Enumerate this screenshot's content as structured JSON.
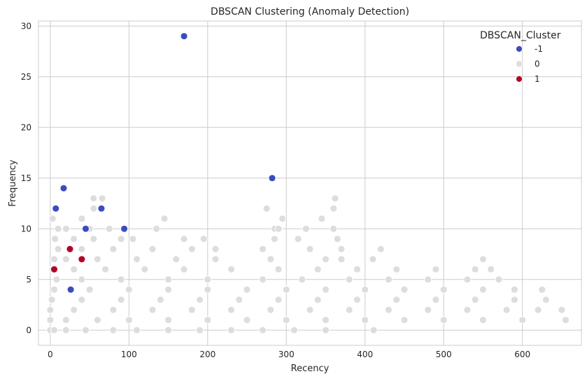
{
  "chart_data": {
    "type": "scatter",
    "title": "DBSCAN Clustering (Anomaly Detection)",
    "xlabel": "Recency",
    "ylabel": "Frequency",
    "xlim": [
      -15,
      675
    ],
    "ylim": [
      -1.5,
      30.5
    ],
    "xticks": [
      0,
      100,
      200,
      300,
      400,
      500,
      600
    ],
    "yticks": [
      0,
      5,
      10,
      15,
      20,
      25,
      30
    ],
    "grid": true,
    "legend": {
      "title": "DBSCAN_Cluster",
      "placement": "top-right",
      "entries": [
        {
          "label": "-1",
          "color": "#3b4cc0"
        },
        {
          "label": "0",
          "color": "#dddddd"
        },
        {
          "label": "1",
          "color": "#b40426"
        }
      ]
    },
    "series": [
      {
        "name": "-1",
        "color": "#3b4cc0",
        "points": [
          [
            170,
            29
          ],
          [
            282,
            15
          ],
          [
            17,
            14
          ],
          [
            7,
            12
          ],
          [
            65,
            12
          ],
          [
            45,
            10
          ],
          [
            94,
            10
          ],
          [
            26,
            4
          ]
        ]
      },
      {
        "name": "1",
        "color": "#b40426",
        "points": [
          [
            25,
            8
          ],
          [
            40,
            7
          ],
          [
            5,
            6
          ]
        ]
      },
      {
        "name": "0",
        "color": "#dddddd",
        "points": [
          [
            0,
            0
          ],
          [
            5,
            0
          ],
          [
            20,
            0
          ],
          [
            45,
            0
          ],
          [
            80,
            0
          ],
          [
            110,
            0
          ],
          [
            150,
            0
          ],
          [
            190,
            0
          ],
          [
            230,
            0
          ],
          [
            270,
            0
          ],
          [
            310,
            0
          ],
          [
            350,
            0
          ],
          [
            411,
            0
          ],
          [
            0,
            1
          ],
          [
            20,
            1
          ],
          [
            60,
            1
          ],
          [
            100,
            1
          ],
          [
            150,
            1
          ],
          [
            200,
            1
          ],
          [
            250,
            1
          ],
          [
            300,
            1
          ],
          [
            350,
            1
          ],
          [
            400,
            1
          ],
          [
            450,
            1
          ],
          [
            500,
            1
          ],
          [
            550,
            1
          ],
          [
            600,
            1
          ],
          [
            655,
            1
          ],
          [
            0,
            2
          ],
          [
            30,
            2
          ],
          [
            80,
            2
          ],
          [
            130,
            2
          ],
          [
            180,
            2
          ],
          [
            230,
            2
          ],
          [
            280,
            2
          ],
          [
            330,
            2
          ],
          [
            380,
            2
          ],
          [
            430,
            2
          ],
          [
            480,
            2
          ],
          [
            530,
            2
          ],
          [
            580,
            2
          ],
          [
            620,
            2
          ],
          [
            650,
            2
          ],
          [
            2,
            3
          ],
          [
            40,
            3
          ],
          [
            90,
            3
          ],
          [
            140,
            3
          ],
          [
            190,
            3
          ],
          [
            240,
            3
          ],
          [
            290,
            3
          ],
          [
            340,
            3
          ],
          [
            390,
            3
          ],
          [
            440,
            3
          ],
          [
            490,
            3
          ],
          [
            540,
            3
          ],
          [
            590,
            3
          ],
          [
            630,
            3
          ],
          [
            5,
            4
          ],
          [
            50,
            4
          ],
          [
            100,
            4
          ],
          [
            150,
            4
          ],
          [
            200,
            4
          ],
          [
            250,
            4
          ],
          [
            300,
            4
          ],
          [
            350,
            4
          ],
          [
            400,
            4
          ],
          [
            450,
            4
          ],
          [
            500,
            4
          ],
          [
            550,
            4
          ],
          [
            590,
            4
          ],
          [
            625,
            4
          ],
          [
            8,
            5
          ],
          [
            40,
            5
          ],
          [
            90,
            5
          ],
          [
            150,
            5
          ],
          [
            200,
            5
          ],
          [
            270,
            5
          ],
          [
            320,
            5
          ],
          [
            380,
            5
          ],
          [
            430,
            5
          ],
          [
            480,
            5
          ],
          [
            530,
            5
          ],
          [
            570,
            5
          ],
          [
            3,
            6
          ],
          [
            30,
            6
          ],
          [
            70,
            6
          ],
          [
            120,
            6
          ],
          [
            170,
            6
          ],
          [
            230,
            6
          ],
          [
            290,
            6
          ],
          [
            340,
            6
          ],
          [
            390,
            6
          ],
          [
            440,
            6
          ],
          [
            490,
            6
          ],
          [
            540,
            6
          ],
          [
            560,
            6
          ],
          [
            5,
            7
          ],
          [
            20,
            7
          ],
          [
            60,
            7
          ],
          [
            110,
            7
          ],
          [
            160,
            7
          ],
          [
            210,
            7
          ],
          [
            280,
            7
          ],
          [
            350,
            7
          ],
          [
            370,
            7
          ],
          [
            410,
            7
          ],
          [
            550,
            7
          ],
          [
            10,
            8
          ],
          [
            40,
            8
          ],
          [
            80,
            8
          ],
          [
            130,
            8
          ],
          [
            180,
            8
          ],
          [
            210,
            8
          ],
          [
            270,
            8
          ],
          [
            330,
            8
          ],
          [
            370,
            8
          ],
          [
            420,
            8
          ],
          [
            6,
            9
          ],
          [
            30,
            9
          ],
          [
            55,
            9
          ],
          [
            90,
            9
          ],
          [
            105,
            9
          ],
          [
            170,
            9
          ],
          [
            195,
            9
          ],
          [
            285,
            9
          ],
          [
            315,
            9
          ],
          [
            365,
            9
          ],
          [
            10,
            10
          ],
          [
            20,
            10
          ],
          [
            50,
            10
          ],
          [
            75,
            10
          ],
          [
            135,
            10
          ],
          [
            285,
            10
          ],
          [
            290,
            10
          ],
          [
            325,
            10
          ],
          [
            360,
            10
          ],
          [
            3,
            11
          ],
          [
            40,
            11
          ],
          [
            145,
            11
          ],
          [
            295,
            11
          ],
          [
            345,
            11
          ],
          [
            55,
            12
          ],
          [
            275,
            12
          ],
          [
            360,
            12
          ],
          [
            55,
            13
          ],
          [
            66,
            13
          ],
          [
            362,
            13
          ]
        ]
      }
    ]
  }
}
